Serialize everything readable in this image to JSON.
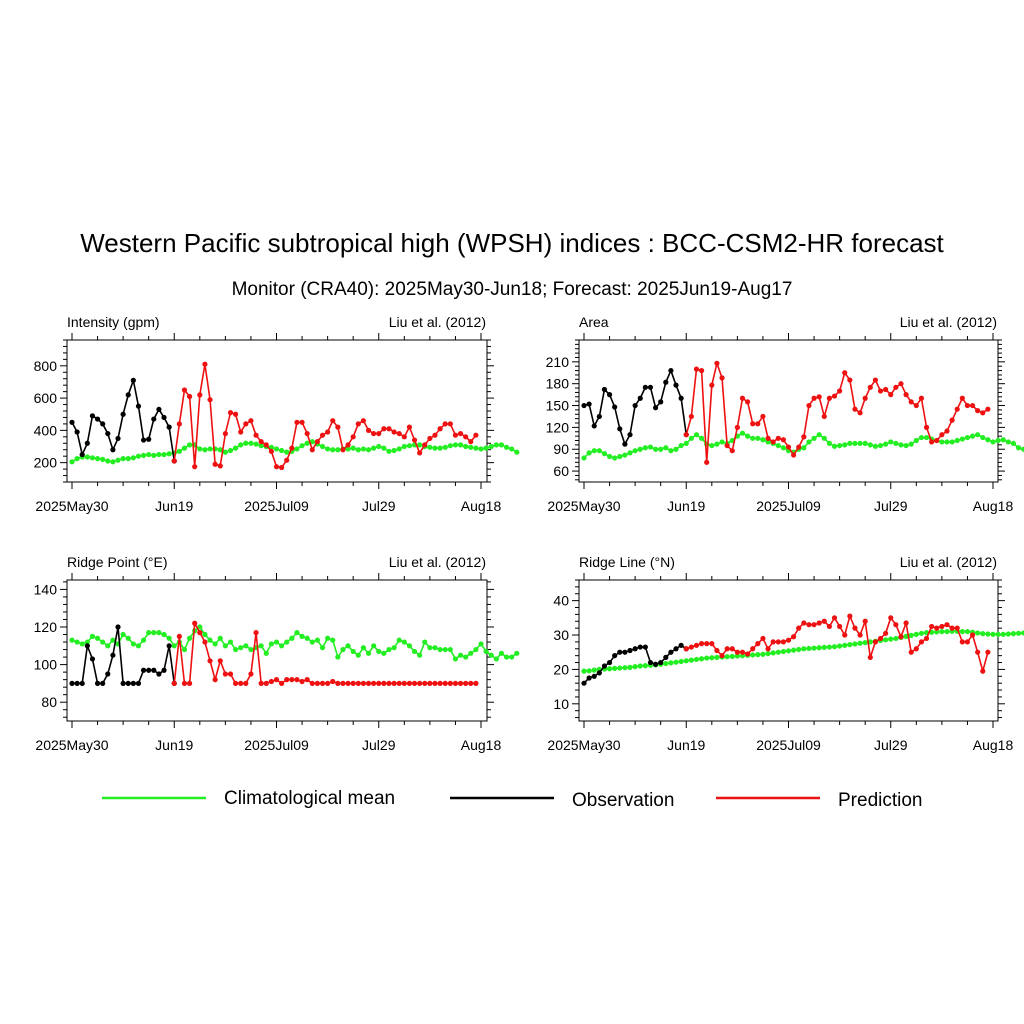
{
  "title": "Western Pacific subtropical high (WPSH) indices : BCC-CSM2-HR forecast",
  "subtitle": "Monitor (CRA40): 2025May30-Jun18; Forecast: 2025Jun19-Aug17",
  "colors": {
    "climatology": "#22ee22",
    "observation": "#000000",
    "prediction": "#ee1111"
  },
  "legend": [
    {
      "label": "Climatological mean",
      "color": "#22ee22"
    },
    {
      "label": "Observation",
      "color": "#000000"
    },
    {
      "label": "Prediction",
      "color": "#ee1111"
    }
  ],
  "chart_data": [
    {
      "type": "line",
      "title": "Intensity (gpm)",
      "citation": "Liu et al. (2012)",
      "x_tick_labels": [
        "2025May30",
        "Jun19",
        "2025Jul09",
        "Jul29",
        "Aug18"
      ],
      "ylim": [
        80,
        960
      ],
      "yticks": [
        200,
        400,
        600,
        800
      ],
      "series": [
        {
          "name": "Observation",
          "start_day": 0,
          "values": [
            450,
            390,
            250,
            320,
            490,
            470,
            440,
            380,
            280,
            350,
            500,
            620,
            710,
            550,
            340,
            345,
            470,
            530,
            480,
            420,
            210
          ]
        },
        {
          "name": "Prediction",
          "start_day": 20,
          "values": [
            210,
            440,
            650,
            610,
            175,
            620,
            810,
            590,
            190,
            180,
            380,
            510,
            500,
            390,
            440,
            460,
            370,
            330,
            310,
            270,
            175,
            170,
            215,
            290,
            450,
            450,
            380,
            280,
            330,
            370,
            390,
            460,
            420,
            280,
            310,
            360,
            440,
            460,
            400,
            380,
            380,
            410,
            410,
            390,
            380,
            360,
            420,
            340,
            260,
            310,
            350,
            370,
            410,
            440,
            440,
            370,
            380,
            360,
            330,
            370
          ]
        },
        {
          "name": "Climatological mean",
          "start_day": 0,
          "values": [
            205,
            225,
            235,
            235,
            230,
            225,
            220,
            210,
            205,
            215,
            225,
            225,
            230,
            240,
            245,
            250,
            245,
            250,
            250,
            255,
            260,
            270,
            290,
            310,
            310,
            285,
            280,
            285,
            285,
            280,
            265,
            275,
            290,
            310,
            320,
            320,
            315,
            305,
            300,
            295,
            285,
            275,
            265,
            270,
            285,
            305,
            320,
            330,
            315,
            300,
            285,
            280,
            280,
            285,
            285,
            290,
            280,
            285,
            280,
            290,
            300,
            290,
            270,
            275,
            285,
            300,
            305,
            310,
            310,
            300,
            295,
            290,
            290,
            295,
            305,
            310,
            310,
            300,
            295,
            290,
            285,
            290,
            300,
            310,
            310,
            295,
            285,
            265
          ]
        }
      ]
    },
    {
      "type": "line",
      "title": "Area",
      "citation": "Liu et al. (2012)",
      "x_tick_labels": [
        "2025May30",
        "Jun19",
        "2025Jul09",
        "Jul29",
        "Aug18"
      ],
      "ylim": [
        45,
        240
      ],
      "yticks": [
        60,
        90,
        120,
        150,
        180,
        210
      ],
      "series": [
        {
          "name": "Observation",
          "start_day": 0,
          "values": [
            150,
            152,
            122,
            135,
            172,
            165,
            148,
            118,
            97,
            110,
            150,
            160,
            175,
            175,
            147,
            155,
            182,
            198,
            178,
            160,
            110
          ]
        },
        {
          "name": "Prediction",
          "start_day": 20,
          "values": [
            110,
            135,
            200,
            198,
            72,
            178,
            208,
            188,
            95,
            88,
            120,
            160,
            155,
            125,
            125,
            135,
            105,
            100,
            105,
            103,
            93,
            82,
            93,
            107,
            150,
            160,
            162,
            135,
            160,
            163,
            170,
            195,
            185,
            145,
            140,
            160,
            175,
            185,
            170,
            172,
            165,
            175,
            180,
            165,
            155,
            150,
            160,
            120,
            100,
            102,
            110,
            115,
            130,
            145,
            160,
            150,
            150,
            143,
            140,
            145
          ]
        },
        {
          "name": "Climatological mean",
          "start_day": 0,
          "values": [
            78,
            85,
            88,
            88,
            84,
            80,
            78,
            80,
            82,
            85,
            88,
            90,
            92,
            93,
            90,
            90,
            92,
            88,
            90,
            95,
            98,
            105,
            110,
            105,
            97,
            95,
            97,
            100,
            98,
            102,
            108,
            112,
            108,
            105,
            105,
            103,
            100,
            98,
            95,
            92,
            88,
            86,
            90,
            92,
            100,
            105,
            110,
            105,
            98,
            94,
            95,
            96,
            98,
            98,
            98,
            98,
            96,
            94,
            95,
            97,
            100,
            98,
            96,
            95,
            97,
            102,
            106,
            106,
            104,
            102,
            100,
            100,
            100,
            102,
            104,
            106,
            108,
            110,
            106,
            103,
            100,
            102,
            103,
            100,
            98,
            92,
            90,
            90
          ]
        }
      ]
    },
    {
      "type": "line",
      "title": "Ridge Point (°E)",
      "citation": "Liu et al. (2012)",
      "x_tick_labels": [
        "2025May30",
        "Jun19",
        "2025Jul09",
        "Jul29",
        "Aug18"
      ],
      "ylim": [
        70,
        145
      ],
      "yticks": [
        80,
        100,
        120,
        140
      ],
      "series": [
        {
          "name": "Observation",
          "start_day": 0,
          "values": [
            90,
            90,
            90,
            110,
            103,
            90,
            90,
            95,
            105,
            120,
            90,
            90,
            90,
            90,
            97,
            97,
            97,
            95,
            97,
            110,
            90
          ]
        },
        {
          "name": "Prediction",
          "start_day": 20,
          "values": [
            90,
            115,
            90,
            90,
            122,
            117,
            112,
            102,
            92,
            102,
            95,
            95,
            90,
            90,
            90,
            95,
            117,
            90,
            90,
            91,
            92,
            90,
            92,
            92,
            92,
            91,
            92,
            90,
            90,
            90,
            90,
            91,
            90,
            90,
            90,
            90,
            90,
            90,
            90,
            90,
            90,
            90,
            90,
            90,
            90,
            90,
            90,
            90,
            90,
            90,
            90,
            90,
            90,
            90,
            90,
            90,
            90,
            90,
            90,
            90
          ]
        },
        {
          "name": "Climatological mean",
          "start_day": 0,
          "values": [
            113,
            112,
            111,
            112,
            115,
            114,
            112,
            110,
            113,
            111,
            116,
            114,
            111,
            110,
            113,
            117,
            117,
            117,
            116,
            114,
            110,
            112,
            108,
            114,
            118,
            120,
            116,
            113,
            111,
            114,
            110,
            112,
            108,
            109,
            110,
            108,
            109,
            110,
            106,
            111,
            112,
            110,
            112,
            114,
            117,
            115,
            114,
            112,
            113,
            109,
            114,
            113,
            104,
            108,
            110,
            107,
            105,
            109,
            106,
            110,
            107,
            106,
            108,
            109,
            113,
            112,
            110,
            107,
            105,
            112,
            109,
            109,
            108,
            108,
            108,
            103,
            105,
            104,
            106,
            108,
            111,
            107,
            105,
            103,
            106,
            104,
            104,
            106
          ]
        }
      ]
    },
    {
      "type": "line",
      "title": "Ridge Line (°N)",
      "citation": "Liu et al. (2012)",
      "x_tick_labels": [
        "2025May30",
        "Jun19",
        "2025Jul09",
        "Jul29",
        "Aug18"
      ],
      "ylim": [
        5,
        46
      ],
      "yticks": [
        10,
        20,
        30,
        40
      ],
      "series": [
        {
          "name": "Observation",
          "start_day": 0,
          "values": [
            16,
            17.5,
            18,
            19,
            21,
            22,
            24,
            25,
            25,
            25.5,
            26,
            26.5,
            26.5,
            22,
            21.5,
            22,
            23.5,
            25,
            26,
            27,
            26
          ]
        },
        {
          "name": "Prediction",
          "start_day": 20,
          "values": [
            26,
            26.5,
            27,
            27.5,
            27.5,
            27.5,
            25.5,
            24,
            26,
            26,
            25,
            25,
            24.5,
            26,
            27.5,
            29,
            26,
            28,
            28,
            28,
            28.5,
            29.5,
            32,
            33.5,
            33,
            33,
            33.5,
            34,
            32.5,
            35,
            32.5,
            30,
            35.5,
            32,
            30,
            34,
            23.5,
            28,
            29,
            30.5,
            35,
            33,
            29.5,
            33.5,
            25,
            26,
            28,
            29,
            32.5,
            32,
            32.5,
            33,
            32,
            32,
            28,
            28,
            30,
            25,
            19.5,
            25
          ]
        },
        {
          "name": "Climatological mean",
          "start_day": 0,
          "values": [
            19.5,
            19.6,
            19.8,
            20,
            20.1,
            20.2,
            20.3,
            20.4,
            20.5,
            20.6,
            20.8,
            21,
            21.1,
            21.2,
            21.3,
            21.5,
            21.7,
            21.9,
            22.1,
            22.3,
            22.5,
            22.7,
            22.9,
            23.1,
            23.3,
            23.4,
            23.5,
            23.6,
            23.7,
            23.8,
            23.9,
            24,
            24.1,
            24.2,
            24.3,
            24.4,
            24.6,
            24.8,
            25,
            25.2,
            25.4,
            25.6,
            25.8,
            26,
            26.1,
            26.2,
            26.3,
            26.4,
            26.5,
            26.6,
            26.8,
            27,
            27.2,
            27.4,
            27.6,
            27.8,
            28,
            28.2,
            28.4,
            28.6,
            28.8,
            29,
            29.3,
            29.6,
            29.9,
            30.2,
            30.5,
            30.7,
            30.8,
            30.9,
            31,
            31,
            31.1,
            31.1,
            31,
            31,
            30.8,
            30.6,
            30.4,
            30.3,
            30.2,
            30.2,
            30.2,
            30.3,
            30.4,
            30.5,
            30.6,
            30.8
          ]
        }
      ]
    }
  ]
}
